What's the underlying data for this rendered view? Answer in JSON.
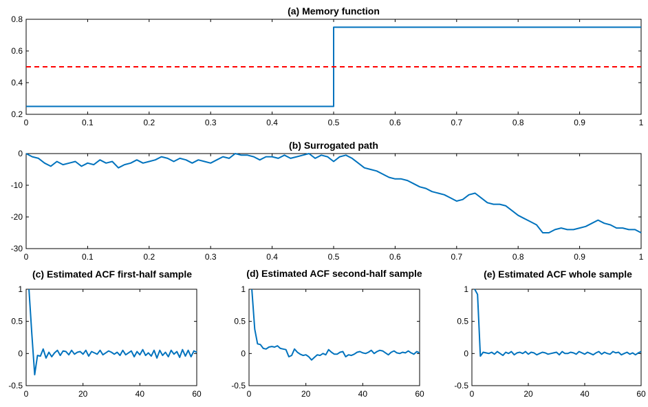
{
  "colors": {
    "series": "#0072BD",
    "reference": "#FF0000",
    "axis": "#000000"
  },
  "chart_data": [
    {
      "id": "a",
      "type": "line",
      "title": "(a) Memory function",
      "xlim": [
        0,
        1
      ],
      "ylim": [
        0.2,
        0.8
      ],
      "xticks": [
        0,
        0.1,
        0.2,
        0.3,
        0.4,
        0.5,
        0.6,
        0.7,
        0.8,
        0.9,
        1
      ],
      "xtick_labels": [
        "0",
        "0.1",
        "0.2",
        "0.3",
        "0.4",
        "0.5",
        "0.6",
        "0.7",
        "0.8",
        "0.9",
        "1"
      ],
      "yticks": [
        0.2,
        0.4,
        0.6,
        0.8
      ],
      "ytick_labels": [
        "0.2",
        "0.4",
        "0.6",
        "0.8"
      ],
      "series": [
        {
          "name": "memory",
          "style": "solid",
          "x": [
            0,
            0.5,
            0.5,
            1
          ],
          "y": [
            0.25,
            0.25,
            0.75,
            0.75
          ]
        },
        {
          "name": "reference",
          "style": "dashed",
          "x": [
            0,
            1
          ],
          "y": [
            0.5,
            0.5
          ]
        }
      ]
    },
    {
      "id": "b",
      "type": "line",
      "title": "(b) Surrogated path",
      "xlim": [
        0,
        1
      ],
      "ylim": [
        -30,
        0
      ],
      "xticks": [
        0,
        0.1,
        0.2,
        0.3,
        0.4,
        0.5,
        0.6,
        0.7,
        0.8,
        0.9,
        1
      ],
      "xtick_labels": [
        "0",
        "0.1",
        "0.2",
        "0.3",
        "0.4",
        "0.5",
        "0.6",
        "0.7",
        "0.8",
        "0.9",
        "1"
      ],
      "yticks": [
        -30,
        -20,
        -10,
        0
      ],
      "ytick_labels": [
        "-30",
        "-20",
        "-10",
        "0"
      ],
      "series": [
        {
          "name": "path",
          "style": "solid",
          "x": [
            0,
            0.01,
            0.02,
            0.03,
            0.04,
            0.05,
            0.06,
            0.07,
            0.08,
            0.09,
            0.1,
            0.11,
            0.12,
            0.13,
            0.14,
            0.15,
            0.16,
            0.17,
            0.18,
            0.19,
            0.2,
            0.21,
            0.22,
            0.23,
            0.24,
            0.25,
            0.26,
            0.27,
            0.28,
            0.29,
            0.3,
            0.31,
            0.32,
            0.33,
            0.34,
            0.35,
            0.36,
            0.37,
            0.38,
            0.39,
            0.4,
            0.41,
            0.42,
            0.43,
            0.44,
            0.45,
            0.46,
            0.47,
            0.48,
            0.49,
            0.5,
            0.51,
            0.52,
            0.53,
            0.54,
            0.55,
            0.56,
            0.57,
            0.58,
            0.59,
            0.6,
            0.61,
            0.62,
            0.63,
            0.64,
            0.65,
            0.66,
            0.67,
            0.68,
            0.69,
            0.7,
            0.71,
            0.72,
            0.73,
            0.74,
            0.75,
            0.76,
            0.77,
            0.78,
            0.79,
            0.8,
            0.81,
            0.82,
            0.83,
            0.84,
            0.85,
            0.86,
            0.87,
            0.88,
            0.89,
            0.9,
            0.91,
            0.92,
            0.93,
            0.94,
            0.95,
            0.96,
            0.97,
            0.98,
            0.99,
            1.0
          ],
          "y": [
            0,
            -1,
            -1.5,
            -3,
            -4,
            -2.5,
            -3.5,
            -3,
            -2.5,
            -4,
            -3,
            -3.5,
            -2,
            -3,
            -2.5,
            -4.5,
            -3.5,
            -3,
            -2,
            -3,
            -2.5,
            -2,
            -1,
            -1.5,
            -2.5,
            -1.5,
            -2,
            -3,
            -2,
            -2.5,
            -3,
            -2,
            -1,
            -1.5,
            0,
            -0.5,
            -0.5,
            -1,
            -2,
            -1,
            -1,
            -1.5,
            -0.5,
            -1.5,
            -1,
            -0.5,
            0,
            -1.5,
            -0.5,
            -1,
            -2.5,
            -1,
            -0.5,
            -1.5,
            -3,
            -4.5,
            -5,
            -5.5,
            -6.5,
            -7.5,
            -8,
            -8,
            -8.5,
            -9.5,
            -10.5,
            -11,
            -12,
            -12.5,
            -13,
            -14,
            -15,
            -14.5,
            -13,
            -12.5,
            -14,
            -15.5,
            -16,
            -16,
            -16.5,
            -18,
            -19.5,
            -20.5,
            -21.5,
            -22.5,
            -25,
            -25,
            -24,
            -23.5,
            -24,
            -24,
            -23.5,
            -23,
            -22,
            -21,
            -22,
            -22.5,
            -23.5,
            -23.5,
            -24,
            -24,
            -25
          ]
        }
      ]
    },
    {
      "id": "c",
      "type": "line",
      "title": "(c) Estimated ACF first-half sample",
      "xlim": [
        0,
        60
      ],
      "ylim": [
        -0.5,
        1
      ],
      "xticks": [
        0,
        20,
        40,
        60
      ],
      "xtick_labels": [
        "0",
        "20",
        "40",
        "60"
      ],
      "yticks": [
        -0.5,
        0,
        0.5,
        1
      ],
      "ytick_labels": [
        "-0.5",
        "0",
        "0.5",
        "1"
      ],
      "series": [
        {
          "name": "acf",
          "style": "solid",
          "x": [
            1,
            2,
            3,
            4,
            5,
            6,
            7,
            8,
            9,
            10,
            11,
            12,
            13,
            14,
            15,
            16,
            17,
            18,
            19,
            20,
            21,
            22,
            23,
            24,
            25,
            26,
            27,
            28,
            29,
            30,
            31,
            32,
            33,
            34,
            35,
            36,
            37,
            38,
            39,
            40,
            41,
            42,
            43,
            44,
            45,
            46,
            47,
            48,
            49,
            50,
            51,
            52,
            53,
            54,
            55,
            56,
            57,
            58,
            59,
            60
          ],
          "y": [
            1,
            0.3,
            -0.33,
            -0.03,
            -0.04,
            0.07,
            -0.07,
            0.02,
            -0.05,
            0.01,
            0.05,
            -0.03,
            0.04,
            0.03,
            -0.02,
            0.05,
            -0.01,
            0.02,
            0.03,
            -0.01,
            0.05,
            -0.04,
            0.03,
            0.01,
            -0.01,
            0.05,
            -0.02,
            0.01,
            0.04,
            0.02,
            -0.01,
            0.02,
            -0.03,
            0.05,
            -0.02,
            0.01,
            0.04,
            -0.05,
            0.03,
            -0.02,
            0.06,
            -0.03,
            0.01,
            -0.04,
            0.05,
            -0.07,
            0.05,
            -0.03,
            0.02,
            -0.05,
            0.05,
            -0.01,
            0.03,
            -0.06,
            0.06,
            -0.04,
            0.05,
            -0.05,
            0.04,
            0.02
          ]
        }
      ]
    },
    {
      "id": "d",
      "type": "line",
      "title": "(d) Estimated ACF second-half sample",
      "xlim": [
        0,
        60
      ],
      "ylim": [
        -0.5,
        1
      ],
      "xticks": [
        0,
        20,
        40,
        60
      ],
      "xtick_labels": [
        "0",
        "20",
        "40",
        "60"
      ],
      "yticks": [
        -0.5,
        0,
        0.5,
        1
      ],
      "ytick_labels": [
        "-0.5",
        "0",
        "0.5",
        "1"
      ],
      "series": [
        {
          "name": "acf",
          "style": "solid",
          "x": [
            1,
            2,
            3,
            4,
            5,
            6,
            7,
            8,
            9,
            10,
            11,
            12,
            13,
            14,
            15,
            16,
            17,
            18,
            19,
            20,
            21,
            22,
            23,
            24,
            25,
            26,
            27,
            28,
            29,
            30,
            31,
            32,
            33,
            34,
            35,
            36,
            37,
            38,
            39,
            40,
            41,
            42,
            43,
            44,
            45,
            46,
            47,
            48,
            49,
            50,
            51,
            52,
            53,
            54,
            55,
            56,
            57,
            58,
            59,
            60
          ],
          "y": [
            1,
            0.38,
            0.15,
            0.14,
            0.08,
            0.07,
            0.1,
            0.11,
            0.1,
            0.12,
            0.08,
            0.07,
            0.06,
            -0.05,
            -0.03,
            0.07,
            0.02,
            -0.01,
            -0.03,
            -0.02,
            -0.05,
            -0.1,
            -0.06,
            -0.02,
            -0.03,
            0.0,
            -0.02,
            0.06,
            0.02,
            -0.01,
            -0.01,
            0.02,
            0.03,
            -0.05,
            -0.02,
            -0.03,
            -0.01,
            0.02,
            0.03,
            0.01,
            0.0,
            0.02,
            0.05,
            0.0,
            0.03,
            0.05,
            0.04,
            0.01,
            -0.02,
            0.02,
            0.04,
            0.01,
            0.0,
            0.02,
            0.01,
            0.04,
            0.01,
            -0.01,
            0.03,
            0.01
          ]
        }
      ]
    },
    {
      "id": "e",
      "type": "line",
      "title": "(e) Estimated ACF whole sample",
      "xlim": [
        0,
        60
      ],
      "ylim": [
        -0.5,
        1
      ],
      "xticks": [
        0,
        20,
        40,
        60
      ],
      "xtick_labels": [
        "0",
        "20",
        "40",
        "60"
      ],
      "yticks": [
        -0.5,
        0,
        0.5,
        1
      ],
      "ytick_labels": [
        "-0.5",
        "0",
        "0.5",
        "1"
      ],
      "series": [
        {
          "name": "acf",
          "style": "solid",
          "x": [
            1,
            2,
            3,
            4,
            5,
            6,
            7,
            8,
            9,
            10,
            11,
            12,
            13,
            14,
            15,
            16,
            17,
            18,
            19,
            20,
            21,
            22,
            23,
            24,
            25,
            26,
            27,
            28,
            29,
            30,
            31,
            32,
            33,
            34,
            35,
            36,
            37,
            38,
            39,
            40,
            41,
            42,
            43,
            44,
            45,
            46,
            47,
            48,
            49,
            50,
            51,
            52,
            53,
            54,
            55,
            56,
            57,
            58,
            59,
            60
          ],
          "y": [
            1,
            0.92,
            -0.04,
            0.02,
            0.01,
            0.0,
            0.02,
            -0.01,
            0.03,
            0.0,
            -0.03,
            0.02,
            0.0,
            0.03,
            -0.02,
            0.01,
            0.02,
            0.0,
            0.03,
            -0.01,
            0.02,
            0.01,
            -0.02,
            0.0,
            0.02,
            0.01,
            -0.01,
            0.0,
            0.01,
            0.02,
            -0.02,
            0.03,
            0.0,
            0.0,
            0.02,
            0.01,
            -0.01,
            0.03,
            0.01,
            -0.01,
            0.02,
            0.0,
            -0.02,
            0.01,
            0.03,
            -0.01,
            0.02,
            0.0,
            -0.01,
            0.03,
            0.01,
            0.02,
            -0.02,
            0.0,
            0.02,
            -0.01,
            0.01,
            -0.02,
            0.01,
            0.03
          ]
        }
      ]
    }
  ]
}
